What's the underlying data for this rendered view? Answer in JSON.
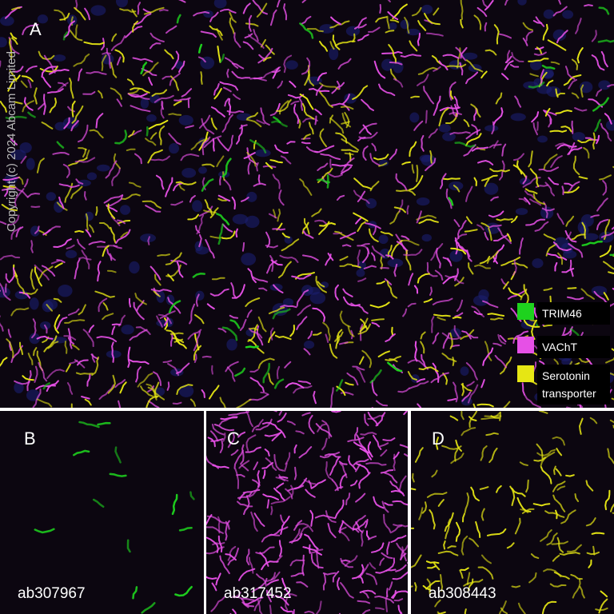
{
  "figure": {
    "copyright": "Copyright (c) 2024 Abcam Limited",
    "main_panel": {
      "label": "A"
    },
    "legend": [
      {
        "label": "TRIM46",
        "color": "#1ed21e"
      },
      {
        "label": "VAChT",
        "color": "#e650e6"
      },
      {
        "label": "Serotonin transporter",
        "color": "#e6e614"
      }
    ],
    "panels": [
      {
        "label": "B",
        "antibody": "ab307967"
      },
      {
        "label": "C",
        "antibody": "ab317452"
      },
      {
        "label": "D",
        "antibody": "ab308443"
      }
    ]
  }
}
